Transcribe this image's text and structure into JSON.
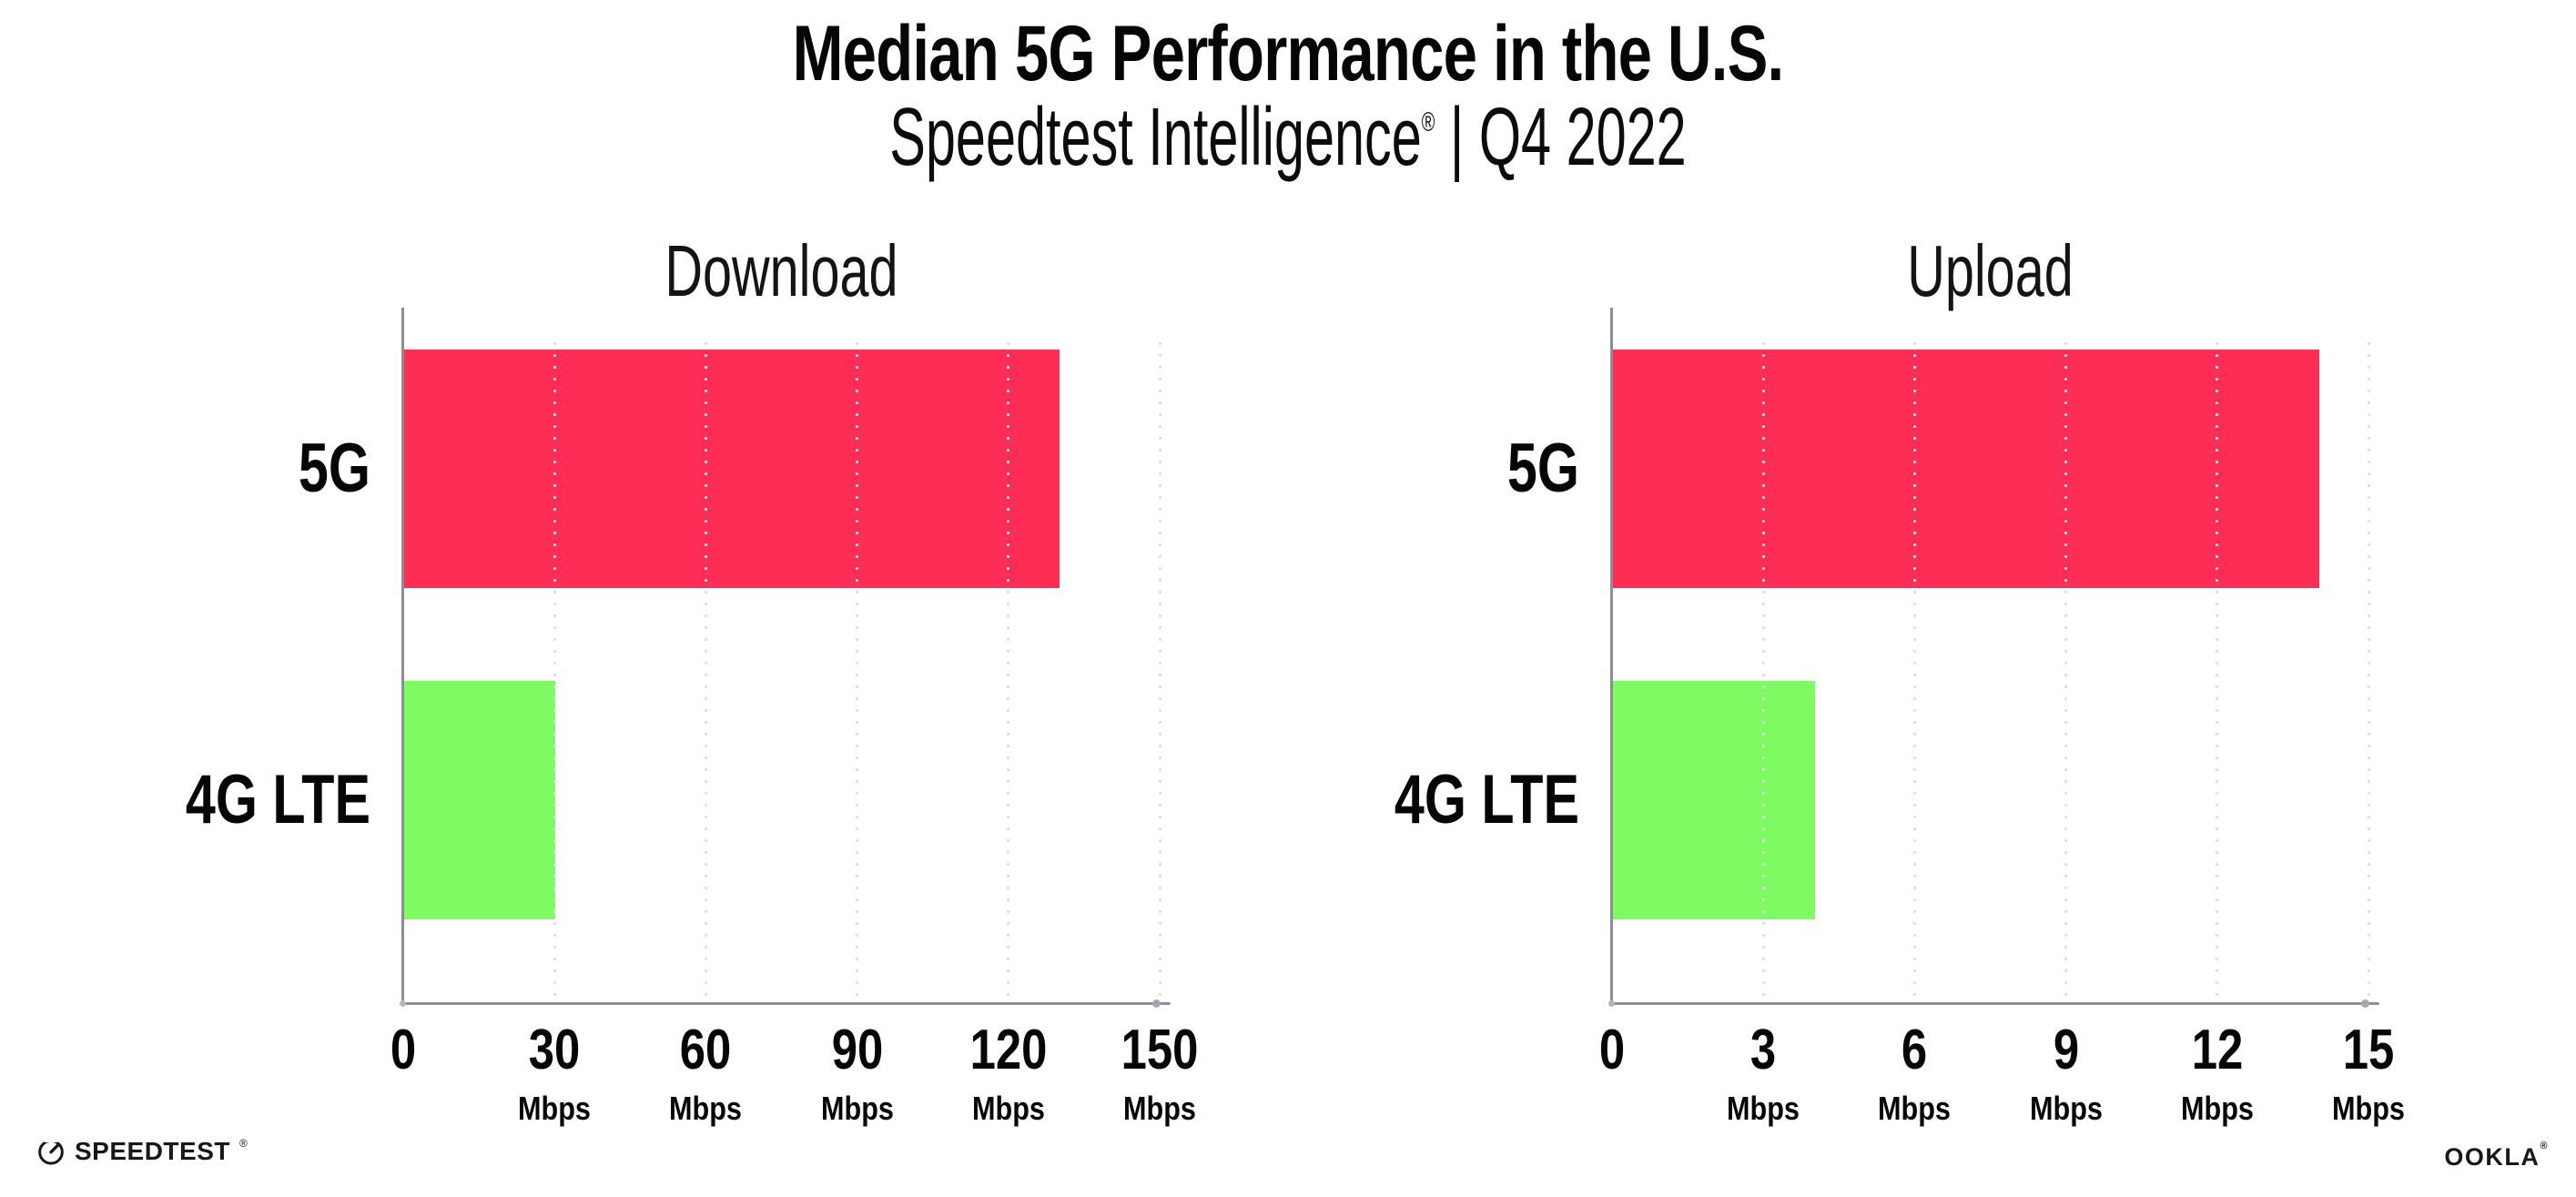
{
  "header": {
    "title": "Median 5G Performance in the U.S.",
    "subtitle_brand": "Speedtest Intelligence",
    "subtitle_mark": "®",
    "subtitle_rest": " | Q4 2022"
  },
  "chart_data": [
    {
      "type": "bar",
      "orientation": "horizontal",
      "title": "Download",
      "unit": "Mbps",
      "categories": [
        "5G",
        "4G LTE"
      ],
      "values": [
        130,
        30
      ],
      "xlim": [
        0,
        150
      ],
      "xticks": [
        0,
        30,
        60,
        90,
        120,
        150
      ],
      "bar_colors": [
        "#fd2d55",
        "#7efb61"
      ],
      "grid": "dotted-vertical",
      "legend": "none"
    },
    {
      "type": "bar",
      "orientation": "horizontal",
      "title": "Upload",
      "unit": "Mbps",
      "categories": [
        "5G",
        "4G LTE"
      ],
      "values": [
        14,
        4
      ],
      "xlim": [
        0,
        15
      ],
      "xticks": [
        0,
        3,
        6,
        9,
        12,
        15
      ],
      "bar_colors": [
        "#fd2d55",
        "#7efb61"
      ],
      "grid": "dotted-vertical",
      "legend": "none"
    }
  ],
  "colors": {
    "bar_5g": "#fd2d55",
    "bar_4g_lte": "#7efb61",
    "gridline": "#dcdce6",
    "axis": "#90909a",
    "text": "#060606"
  },
  "footer": {
    "speedtest": "SPEEDTEST",
    "speedtest_mark": "®",
    "ookla": "OOKLA",
    "ookla_mark": "®"
  }
}
